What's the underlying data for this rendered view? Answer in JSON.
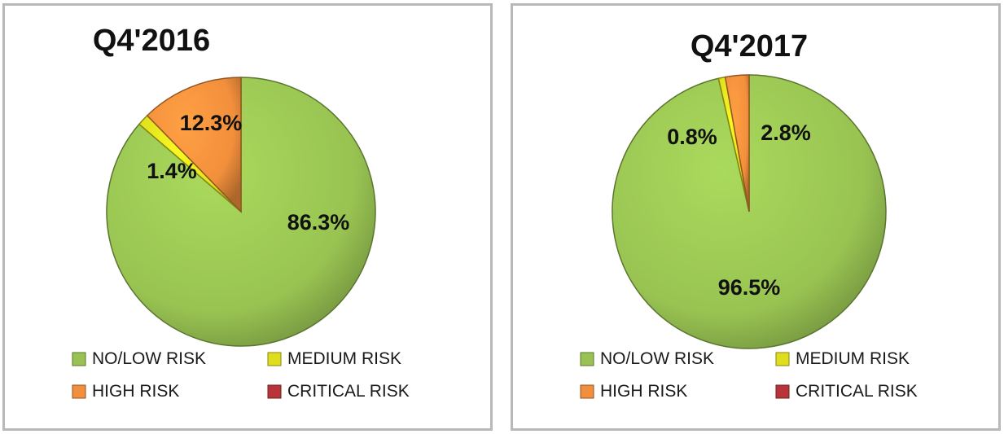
{
  "chart_data": [
    {
      "type": "pie",
      "title": "Q4'2016",
      "categories": [
        "NO/LOW RISK",
        "MEDIUM RISK",
        "HIGH RISK",
        "CRITICAL RISK"
      ],
      "values": [
        86.3,
        1.4,
        12.3,
        0.0
      ],
      "data_labels": [
        "86.3%",
        "1.4%",
        "12.3%",
        ""
      ],
      "colors": [
        "#98c352",
        "#dede1e",
        "#f28f3c",
        "#b8343a"
      ],
      "legend": [
        "NO/LOW RISK",
        "MEDIUM RISK",
        "HIGH RISK",
        "CRITICAL RISK"
      ],
      "legend_position": "bottom"
    },
    {
      "type": "pie",
      "title": "Q4'2017",
      "categories": [
        "NO/LOW RISK",
        "MEDIUM RISK",
        "HIGH RISK",
        "CRITICAL RISK"
      ],
      "values": [
        96.5,
        0.8,
        2.8,
        0.0
      ],
      "data_labels": [
        "96.5%",
        "0.8%",
        "2.8%",
        ""
      ],
      "colors": [
        "#98c352",
        "#dede1e",
        "#f28f3c",
        "#b8343a"
      ],
      "legend": [
        "NO/LOW RISK",
        "MEDIUM RISK",
        "HIGH RISK",
        "CRITICAL RISK"
      ],
      "legend_position": "bottom"
    }
  ]
}
